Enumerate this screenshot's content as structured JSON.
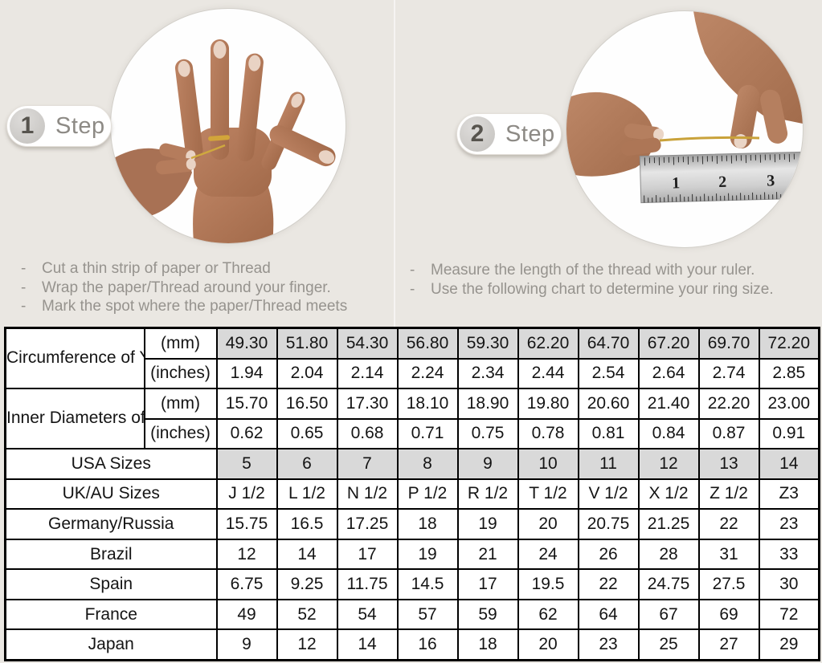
{
  "page": {
    "background": "#eae7e2",
    "bullet_char": "-"
  },
  "colors": {
    "table_highlight": "#d9d9d9",
    "table_border": "#000000",
    "muted_text": "#96938e",
    "gold_thread": "#c9a23a",
    "skin_tone": "#b1795a"
  },
  "steps": [
    {
      "number": "1",
      "label": "Step",
      "illustration": "hand-with-thread-around-finger",
      "instructions": [
        "Cut a thin strip of paper or Thread",
        "Wrap the paper/Thread around your finger.",
        "Mark the spot where the paper/Thread meets"
      ]
    },
    {
      "number": "2",
      "label": "Step",
      "illustration": "hands-measuring-thread-with-ruler",
      "ruler_numbers": [
        "1",
        "2",
        "3"
      ],
      "instructions": [
        "Measure the length of the thread with your ruler.",
        "Use the following chart to determine your ring size."
      ]
    }
  ],
  "chart_data": {
    "type": "table",
    "columns": 10,
    "measure_groups": [
      {
        "label": "Circumference of Your Finger",
        "rows": [
          {
            "unit": "(mm)",
            "highlight": true,
            "values": [
              "49.30",
              "51.80",
              "54.30",
              "56.80",
              "59.30",
              "62.20",
              "64.70",
              "67.20",
              "69.70",
              "72.20"
            ]
          },
          {
            "unit": "(inches)",
            "highlight": false,
            "values": [
              "1.94",
              "2.04",
              "2.14",
              "2.24",
              "2.34",
              "2.44",
              "2.54",
              "2.64",
              "2.74",
              "2.85"
            ]
          }
        ]
      },
      {
        "label": "Inner Diameters of Rings",
        "rows": [
          {
            "unit": "(mm)",
            "highlight": false,
            "values": [
              "15.70",
              "16.50",
              "17.30",
              "18.10",
              "18.90",
              "19.80",
              "20.60",
              "21.40",
              "22.20",
              "23.00"
            ]
          },
          {
            "unit": "(inches)",
            "highlight": false,
            "values": [
              "0.62",
              "0.65",
              "0.68",
              "0.71",
              "0.75",
              "0.78",
              "0.81",
              "0.84",
              "0.87",
              "0.91"
            ]
          }
        ]
      }
    ],
    "size_rows": [
      {
        "label": "USA Sizes",
        "highlight": true,
        "values": [
          "5",
          "6",
          "7",
          "8",
          "9",
          "10",
          "11",
          "12",
          "13",
          "14"
        ]
      },
      {
        "label": "UK/AU Sizes",
        "highlight": false,
        "values": [
          "J 1/2",
          "L 1/2",
          "N 1/2",
          "P 1/2",
          "R 1/2",
          "T 1/2",
          "V 1/2",
          "X 1/2",
          "Z 1/2",
          "Z3"
        ]
      },
      {
        "label": "Germany/Russia",
        "highlight": false,
        "values": [
          "15.75",
          "16.5",
          "17.25",
          "18",
          "19",
          "20",
          "20.75",
          "21.25",
          "22",
          "23"
        ]
      },
      {
        "label": "Brazil",
        "highlight": false,
        "values": [
          "12",
          "14",
          "17",
          "19",
          "21",
          "24",
          "26",
          "28",
          "31",
          "33"
        ]
      },
      {
        "label": "Spain",
        "highlight": false,
        "values": [
          "6.75",
          "9.25",
          "11.75",
          "14.5",
          "17",
          "19.5",
          "22",
          "24.75",
          "27.5",
          "30"
        ]
      },
      {
        "label": "France",
        "highlight": false,
        "values": [
          "49",
          "52",
          "54",
          "57",
          "59",
          "62",
          "64",
          "67",
          "69",
          "72"
        ]
      },
      {
        "label": "Japan",
        "highlight": false,
        "values": [
          "9",
          "12",
          "14",
          "16",
          "18",
          "20",
          "23",
          "25",
          "27",
          "29"
        ]
      }
    ]
  }
}
